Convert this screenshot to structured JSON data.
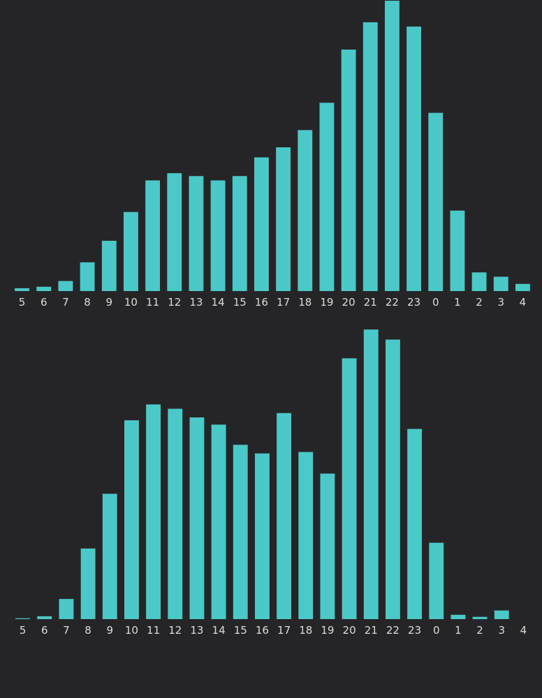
{
  "colors": {
    "background": "#252527",
    "bar": "#4bc8c8",
    "tick_text": "#dcdcdc"
  },
  "chart_data": [
    {
      "type": "bar",
      "title": "",
      "xlabel": "",
      "ylabel": "",
      "grid": false,
      "legend": "none",
      "categories": [
        "5",
        "6",
        "7",
        "8",
        "9",
        "10",
        "11",
        "12",
        "13",
        "14",
        "15",
        "16",
        "17",
        "18",
        "19",
        "20",
        "21",
        "22",
        "23",
        "0",
        "1",
        "2",
        "3",
        "4"
      ],
      "values": [
        1,
        1.5,
        3.5,
        10,
        17.5,
        27.5,
        38.5,
        41,
        40,
        38.5,
        40,
        46.5,
        50,
        56,
        65.5,
        84,
        93.5,
        101,
        92,
        62,
        28,
        6.5,
        5,
        2.5
      ],
      "ylim": [
        0,
        101
      ]
    },
    {
      "type": "bar",
      "title": "",
      "xlabel": "",
      "ylabel": "",
      "grid": false,
      "legend": "none",
      "categories": [
        "5",
        "6",
        "7",
        "8",
        "9",
        "10",
        "11",
        "12",
        "13",
        "14",
        "15",
        "16",
        "17",
        "18",
        "19",
        "20",
        "21",
        "22",
        "23",
        "0",
        "1",
        "2",
        "3",
        "4"
      ],
      "values": [
        0.3,
        1,
        7,
        24.5,
        43.5,
        69,
        74.5,
        73,
        70,
        67.5,
        60.5,
        57.5,
        71.5,
        58,
        50.5,
        90.5,
        100.5,
        97,
        66,
        26.5,
        1.5,
        0.8,
        3,
        0
      ],
      "ylim": [
        0,
        101
      ]
    }
  ]
}
